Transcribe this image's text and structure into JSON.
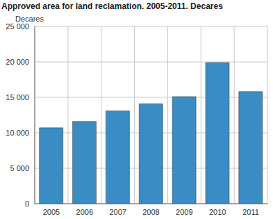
{
  "chart_data": {
    "type": "bar",
    "title": "Approved area for land reclamation. 2005-2011. Decares",
    "y_label": "Decares",
    "categories": [
      "2005",
      "2006",
      "2007",
      "2008",
      "2009",
      "2010",
      "2011"
    ],
    "values": [
      10700,
      11600,
      13100,
      14100,
      15100,
      19900,
      15800
    ],
    "color": "#3a8cc4",
    "ylim": [
      0,
      25000
    ],
    "yticks": [
      0,
      {
        "value": 5000,
        "label": "5 000"
      },
      {
        "value": 10000,
        "label": "10 000"
      },
      {
        "value": 15000,
        "label": "15 000"
      },
      {
        "value": 20000,
        "label": "20 000"
      },
      {
        "value": 25000,
        "label": "25 000"
      }
    ],
    "grid": true
  }
}
